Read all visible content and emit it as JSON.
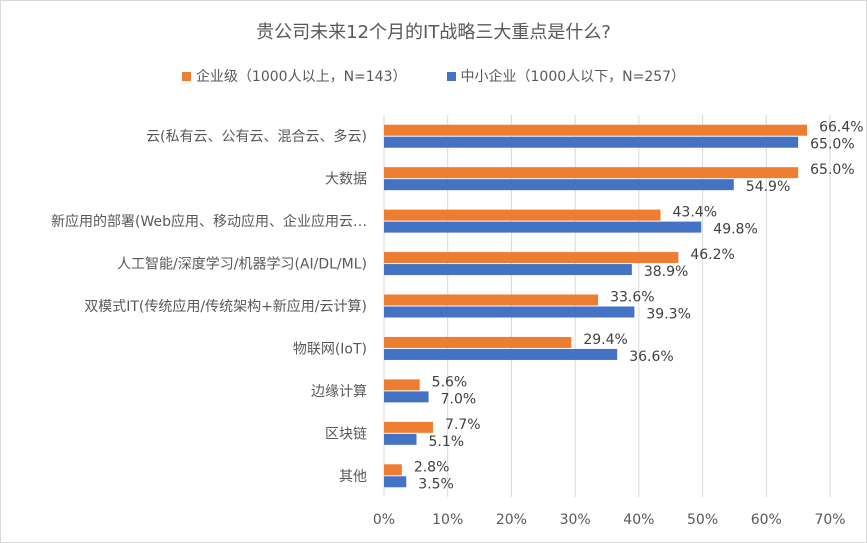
{
  "chart_data": {
    "type": "bar",
    "orientation": "horizontal",
    "title": "贵公司未来12个月的IT战略三大重点是什么?",
    "categories": [
      "云(私有云、公有云、混合云、多云)",
      "大数据",
      "新应用的部署(Web应用、移动应用、企业应用云…",
      "人工智能/深度学习/机器学习(AI/DL/ML)",
      "双模式IT(传统应用/传统架构+新应用/云计算)",
      "物联网(IoT)",
      "边缘计算",
      "区块链",
      "其他"
    ],
    "series": [
      {
        "name": "企业级（1000人以上，N=143）",
        "color": "#ED7D31",
        "values": [
          66.4,
          65.0,
          43.4,
          46.2,
          33.6,
          29.4,
          5.6,
          7.7,
          2.8
        ],
        "labels": [
          "66.4%",
          "65.0%",
          "43.4%",
          "46.2%",
          "33.6%",
          "29.4%",
          "5.6%",
          "7.7%",
          "2.8%"
        ]
      },
      {
        "name": "中小企业（1000人以下，N=257）",
        "color": "#4472C4",
        "values": [
          65.0,
          54.9,
          49.8,
          38.9,
          39.3,
          36.6,
          7.0,
          5.1,
          3.5
        ],
        "labels": [
          "65.0%",
          "54.9%",
          "49.8%",
          "38.9%",
          "39.3%",
          "36.6%",
          "7.0%",
          "5.1%",
          "3.5%"
        ]
      }
    ],
    "xlim": [
      0,
      70
    ],
    "xticks": [
      "0%",
      "10%",
      "20%",
      "30%",
      "40%",
      "50%",
      "60%",
      "70%"
    ],
    "grid": true,
    "legend_position": "top"
  }
}
